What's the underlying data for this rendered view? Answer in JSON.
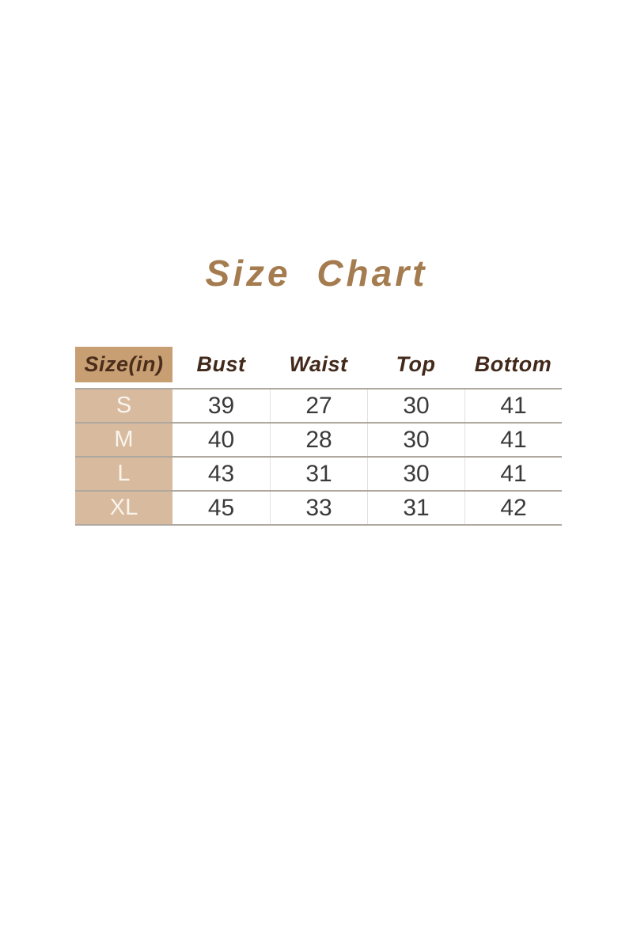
{
  "title": {
    "text": "Size Chart",
    "color": "#A57C4F"
  },
  "table": {
    "header": [
      "Size(in)",
      "Bust",
      "Waist",
      "Top",
      "Bottom"
    ],
    "rows": [
      {
        "label": "S",
        "cells": [
          "39",
          "27",
          "30",
          "41"
        ]
      },
      {
        "label": "M",
        "cells": [
          "40",
          "28",
          "30",
          "41"
        ]
      },
      {
        "label": "L",
        "cells": [
          "43",
          "31",
          "30",
          "41"
        ]
      },
      {
        "label": "XL",
        "cells": [
          "45",
          "33",
          "31",
          "42"
        ]
      }
    ],
    "colors": {
      "header_label_bg": "#C89F73",
      "header_text": "#42291A",
      "row_label_bg": "#D8BA9E",
      "row_label_text": "#F9F4ED",
      "data_text": "#3A3A3A",
      "grid_line": "#AFA89E",
      "title_text": "#A57C4F"
    }
  },
  "chart_data": {
    "type": "table",
    "title": "Size Chart",
    "unit": "inches",
    "columns": [
      "Size(in)",
      "Bust",
      "Waist",
      "Top",
      "Bottom"
    ],
    "rows": [
      [
        "S",
        39,
        27,
        30,
        41
      ],
      [
        "M",
        40,
        28,
        30,
        41
      ],
      [
        "L",
        43,
        31,
        30,
        41
      ],
      [
        "XL",
        45,
        33,
        31,
        42
      ]
    ]
  }
}
